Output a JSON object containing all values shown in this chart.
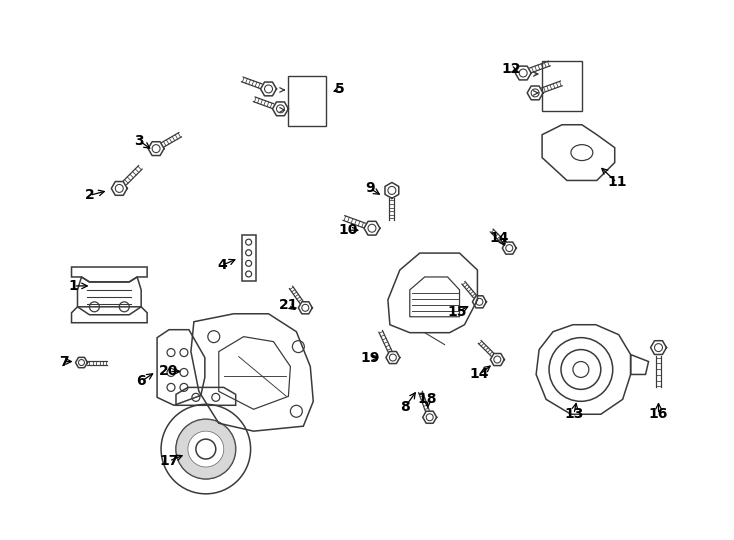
{
  "background_color": "#ffffff",
  "line_color": "#3a3a3a",
  "label_color": "#000000",
  "figsize": [
    7.34,
    5.4
  ],
  "dpi": 100
}
